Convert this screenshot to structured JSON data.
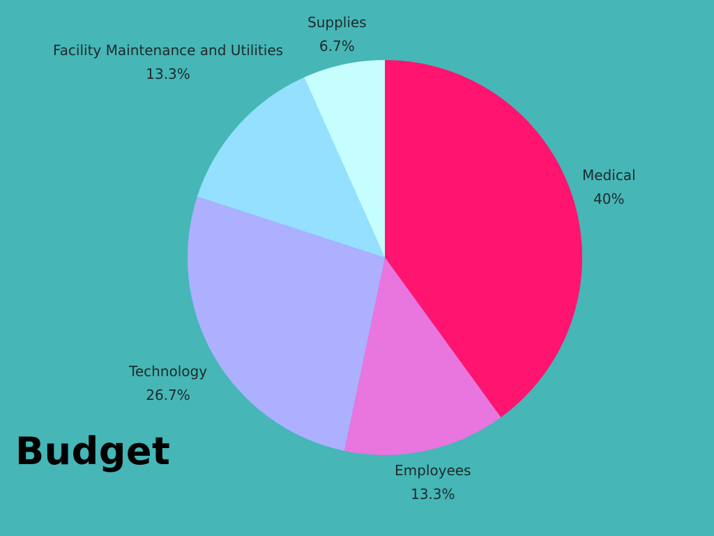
{
  "chart_data": {
    "type": "pie",
    "title": "Budget",
    "start_angle_deg": 0,
    "direction": "clockwise",
    "slices": [
      {
        "label": "Medical",
        "value": 40,
        "value_label": "40%",
        "color": "#ff1470"
      },
      {
        "label": "Employees",
        "value": 13.3,
        "value_label": "13.3%",
        "color": "#e975df"
      },
      {
        "label": "Technology",
        "value": 26.7,
        "value_label": "26.7%",
        "color": "#acb0ff"
      },
      {
        "label": "Facility Maintenance and Utilities",
        "value": 13.3,
        "value_label": "13.3%",
        "color": "#95e0ff"
      },
      {
        "label": "Supplies",
        "value": 6.7,
        "value_label": "6.7%",
        "color": "#c6fdff"
      }
    ],
    "background_color": "#46b6b7",
    "legend": "none"
  }
}
